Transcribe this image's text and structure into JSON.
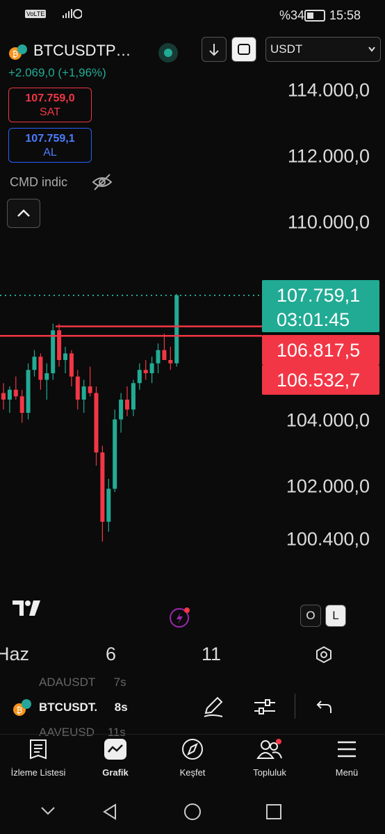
{
  "status_bar": {
    "battery": "%34",
    "time": "15:58"
  },
  "header": {
    "symbol": "BTCUSDTP…",
    "change": "+2.069,0 (+1,96%)",
    "currency": "USDT",
    "sell": {
      "price": "107.759,0",
      "label": "SAT"
    },
    "buy": {
      "price": "107.759,1",
      "label": "AL"
    },
    "indicator": "CMD indic"
  },
  "chart_data": {
    "type": "candlestick",
    "up_color": "#22ab94",
    "down_color": "#f23645",
    "ylim": [
      98600,
      114600
    ],
    "yticks": [
      {
        "value": 114000,
        "label": "114.000,0"
      },
      {
        "value": 112000,
        "label": "112.000,0"
      },
      {
        "value": 110000,
        "label": "110.000,0"
      },
      {
        "value": 104000,
        "label": "104.000,0"
      },
      {
        "value": 102000,
        "label": "102.000,0"
      },
      {
        "value": 100400,
        "label": "100.400,0"
      }
    ],
    "x_labels": [
      "Haz",
      "6",
      "11"
    ],
    "open": [
      104800,
      104600,
      104900,
      104700,
      104200,
      105500,
      105900,
      105200,
      105400,
      106700,
      105800,
      106000,
      105300,
      104600,
      105000,
      104800,
      103000,
      100900,
      101900,
      104000,
      104600,
      104300,
      105100,
      105500,
      105400,
      105700,
      106100,
      105800,
      105700
    ],
    "high": [
      105100,
      105000,
      105300,
      104900,
      105700,
      106100,
      106000,
      105700,
      106900,
      106900,
      106200,
      106100,
      105500,
      105200,
      105600,
      105000,
      103200,
      102200,
      104300,
      104800,
      105000,
      105200,
      105700,
      105800,
      105900,
      106300,
      106600,
      106200,
      107800
    ],
    "low": [
      104300,
      104200,
      104600,
      103900,
      104000,
      105300,
      104900,
      104600,
      105200,
      105600,
      105400,
      105000,
      104300,
      104200,
      104700,
      102600,
      100300,
      100600,
      101800,
      103600,
      104100,
      104100,
      104900,
      105200,
      105100,
      105400,
      105800,
      105500,
      105600
    ],
    "close": [
      104600,
      104900,
      104700,
      104200,
      105500,
      105900,
      105200,
      105400,
      106700,
      105800,
      106000,
      105300,
      104600,
      105000,
      104800,
      103000,
      100900,
      101900,
      104000,
      104600,
      104300,
      105100,
      105500,
      105400,
      105700,
      106100,
      105800,
      105700,
      107759.1
    ],
    "price_lines": [
      {
        "value": 107759.1,
        "label": "107.759,1",
        "sublabel": "03:01:45",
        "color": "#22ab94",
        "style": "dotted"
      },
      {
        "value": 106817.5,
        "label": "106.817,5",
        "color": "#f23645",
        "style": "solid"
      },
      {
        "value": 106532.7,
        "label": "106.532,7",
        "color": "#f23645",
        "style": "solid"
      }
    ]
  },
  "chart_controls": [
    "O",
    "L"
  ],
  "watchlist": [
    {
      "symbol": "ADAUSDT",
      "time": "7s"
    },
    {
      "symbol": "BTCUSDT.",
      "time": "8s"
    },
    {
      "symbol": "AAVEUSD",
      "time": "11s"
    }
  ],
  "nav": [
    "İzleme Listesi",
    "Grafik",
    "Keşfet",
    "Topluluk",
    "Menü"
  ]
}
